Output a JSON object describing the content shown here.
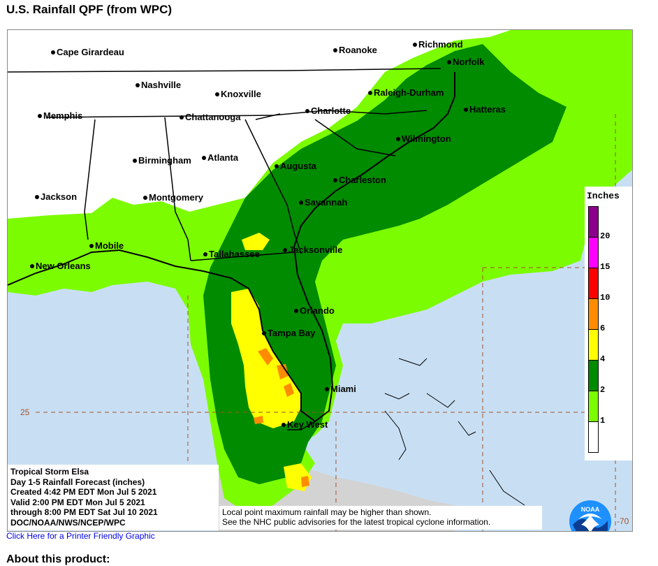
{
  "page": {
    "title": "U.S. Rainfall QPF (from WPC)",
    "printer_link": "Click Here for a Printer Friendly Graphic",
    "about_heading": "About this product:"
  },
  "map": {
    "info": {
      "storm": "Tropical Storm Elsa",
      "product": "Day 1-5 Rainfall Forecast (inches)",
      "created": "Created 4:42 PM EDT Mon Jul 5 2021",
      "valid": "Valid 2:00 PM EDT Mon Jul 5 2021",
      "through": "through 8:00 PM EDT Sat Jul 10 2021",
      "source": "DOC/NOAA/NWS/NCEP/WPC"
    },
    "notes": {
      "line1": "Local point maximum rainfall may be higher than shown.",
      "line2": "See the NHC public advisories for the latest tropical cyclone information."
    },
    "logo_text": "NOAA",
    "grid_labels": {
      "lat": "25",
      "lon": "-70"
    },
    "cities": [
      {
        "name": "Cape Girardeau"
      },
      {
        "name": "Roanoke"
      },
      {
        "name": "Richmond"
      },
      {
        "name": "Norfolk"
      },
      {
        "name": "Nashville"
      },
      {
        "name": "Knoxville"
      },
      {
        "name": "Raleigh-Durham"
      },
      {
        "name": "Memphis"
      },
      {
        "name": "Chattanooga"
      },
      {
        "name": "Charlotte"
      },
      {
        "name": "Hatteras"
      },
      {
        "name": "Wilmington"
      },
      {
        "name": "Birmingham"
      },
      {
        "name": "Atlanta"
      },
      {
        "name": "Augusta"
      },
      {
        "name": "Charleston"
      },
      {
        "name": "Jackson"
      },
      {
        "name": "Montgomery"
      },
      {
        "name": "Savannah"
      },
      {
        "name": "Mobile"
      },
      {
        "name": "Tallahassee"
      },
      {
        "name": "Jacksonville"
      },
      {
        "name": "New Orleans"
      },
      {
        "name": "Orlando"
      },
      {
        "name": "Tampa Bay"
      },
      {
        "name": "Miami"
      },
      {
        "name": "Key West"
      }
    ]
  },
  "legend": {
    "title": "Inches",
    "bins": [
      {
        "label": "20",
        "color": "#8b008b"
      },
      {
        "label": "15",
        "color": "#ff00ff"
      },
      {
        "label": "10",
        "color": "#ff0000"
      },
      {
        "label": "6",
        "color": "#ff8c00"
      },
      {
        "label": "4",
        "color": "#ffff00"
      },
      {
        "label": "2",
        "color": "#008b00"
      },
      {
        "label": "1",
        "color": "#7cfc00"
      },
      {
        "label": "",
        "color": "#ffffff"
      }
    ]
  },
  "colors": {
    "ocean": "#c8dff3",
    "land_dry": "#ffffff",
    "land_outside": "#d3d3d3",
    "rain_1": "#7cfc00",
    "rain_2": "#008b00",
    "rain_4": "#ffff00",
    "rain_6": "#ff8c00"
  }
}
